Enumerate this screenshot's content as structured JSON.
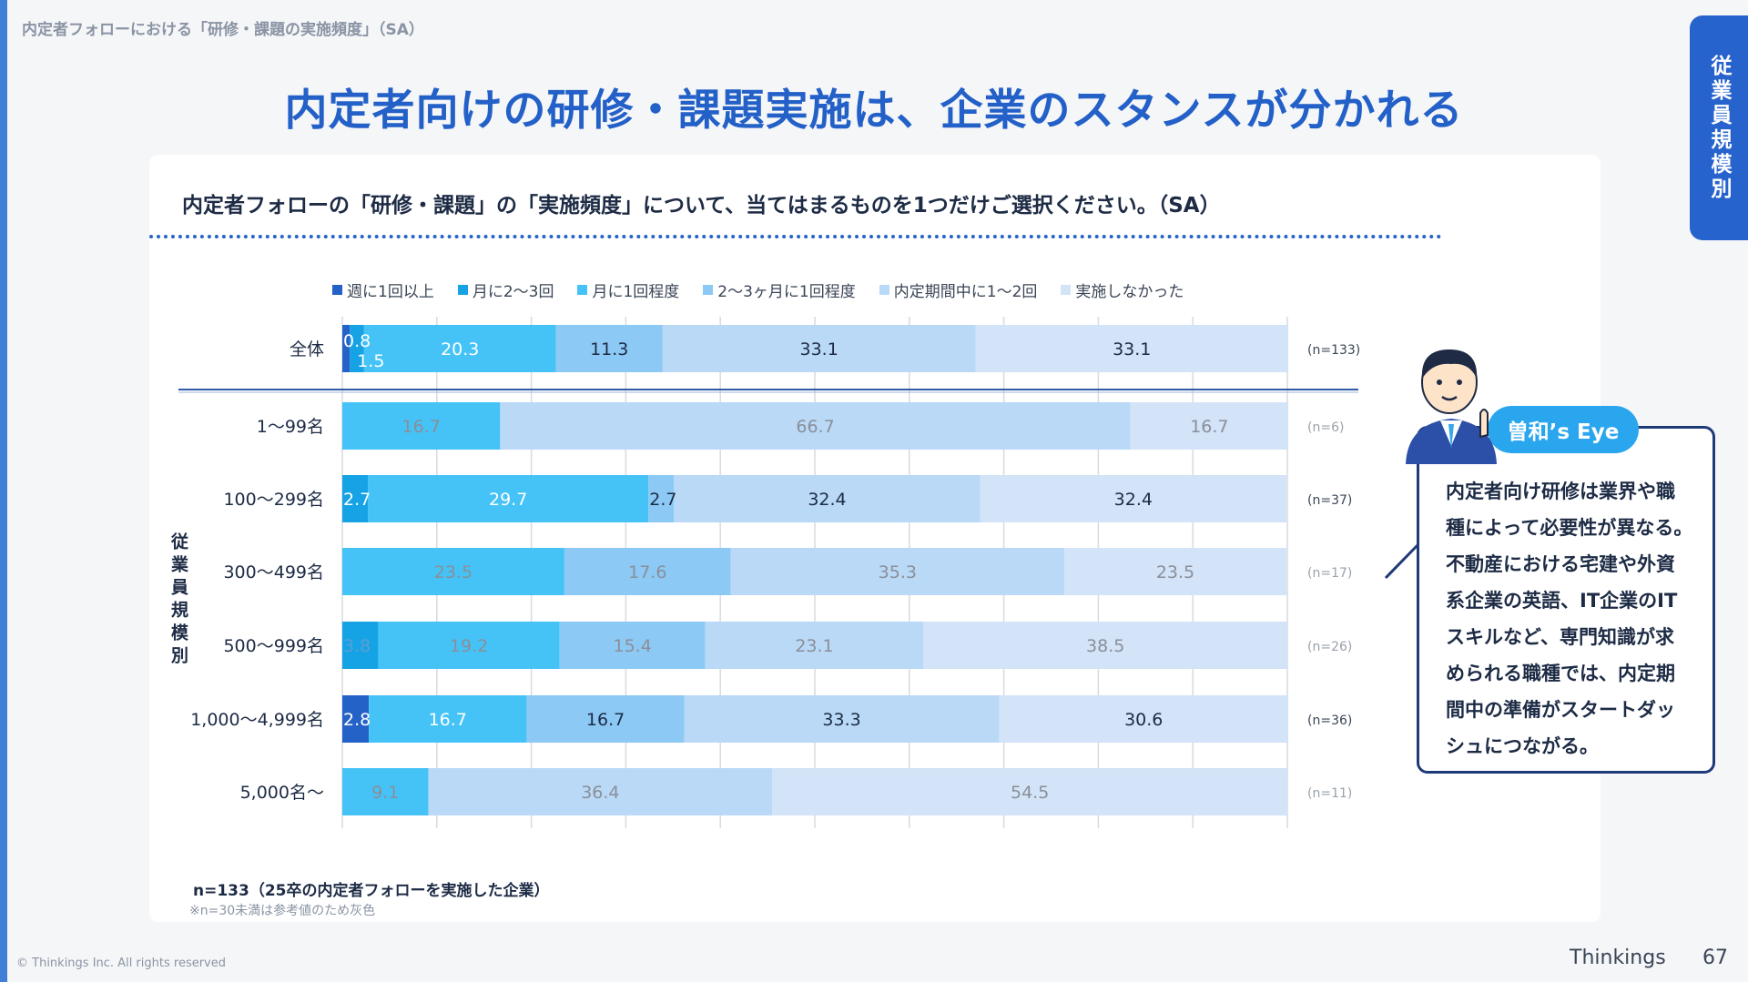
{
  "page": {
    "breadcrumb": "内定者フォローにおける「研修・課題の実施頻度」（SA）",
    "headline": "内定者向けの研修・課題実施は、企業のスタンスが分かれる",
    "side_tab": "従業員規模別",
    "question": "内定者フォローの「研修・課題」の「実施頻度」について、当てはまるものを1つだけご選択ください。（SA）",
    "note_main": "n=133（25卒の内定者フォローを実施した企業）",
    "note_sub": "※n=30未満は参考値のため灰色",
    "copyright": "© Thinkings Inc. All rights reserved",
    "brand": "Thinkings",
    "page_number": "67",
    "eye_label": "曽和’s Eye",
    "comment_lines": [
      "内定者向け研修は業界や職",
      "種によって必要性が異なる。",
      "不動産における宅建や外資",
      "系企業の英語、IT企業のIT",
      "スキルなど、専門知識が求",
      "められる職種では、内定期",
      "間中の準備がスタートダッ",
      "シュにつながる。"
    ]
  },
  "colors": {
    "accent": "#2360c8",
    "side_tab": "#2763cc",
    "eye_badge": "#2aa6ee",
    "grey_label": "#8a8f98",
    "dark_label": "#1d2b45"
  },
  "chart_data": {
    "type": "bar",
    "orientation": "horizontal-stacked-100",
    "group_label": "従業員規模別",
    "categories": [
      "全体",
      "1〜99名",
      "100〜299名",
      "300〜499名",
      "500〜999名",
      "1,000〜4,999名",
      "5,000名〜"
    ],
    "n_labels": [
      "(n=133)",
      "(n=6)",
      "(n=37)",
      "(n=17)",
      "(n=26)",
      "(n=36)",
      "(n=11)"
    ],
    "grey_rows": [
      false,
      true,
      false,
      true,
      true,
      false,
      true
    ],
    "xlim": [
      0,
      100
    ],
    "grid": true,
    "legend_position": "top",
    "series": [
      {
        "name": "週に1回以上",
        "color": "#2462c8",
        "values": [
          0.8,
          0,
          0,
          0,
          0,
          2.8,
          0
        ]
      },
      {
        "name": "月に2〜3回",
        "color": "#16a3e6",
        "values": [
          1.5,
          0,
          2.7,
          0,
          3.8,
          0,
          0
        ]
      },
      {
        "name": "月に1回程度",
        "color": "#45c3f7",
        "values": [
          20.3,
          16.7,
          29.7,
          23.5,
          19.2,
          16.7,
          9.1
        ]
      },
      {
        "name": "2〜3ヶ月に1回程度",
        "color": "#8cc9f5",
        "values": [
          11.3,
          0,
          2.7,
          17.6,
          15.4,
          16.7,
          0
        ]
      },
      {
        "name": "内定期間中に1〜2回",
        "color": "#b9d9f7",
        "values": [
          33.1,
          66.7,
          32.4,
          35.3,
          23.1,
          33.3,
          36.4
        ]
      },
      {
        "name": "実施しなかった",
        "color": "#d3e3f8",
        "values": [
          33.1,
          16.7,
          32.4,
          23.5,
          38.5,
          30.6,
          54.5
        ]
      }
    ]
  }
}
